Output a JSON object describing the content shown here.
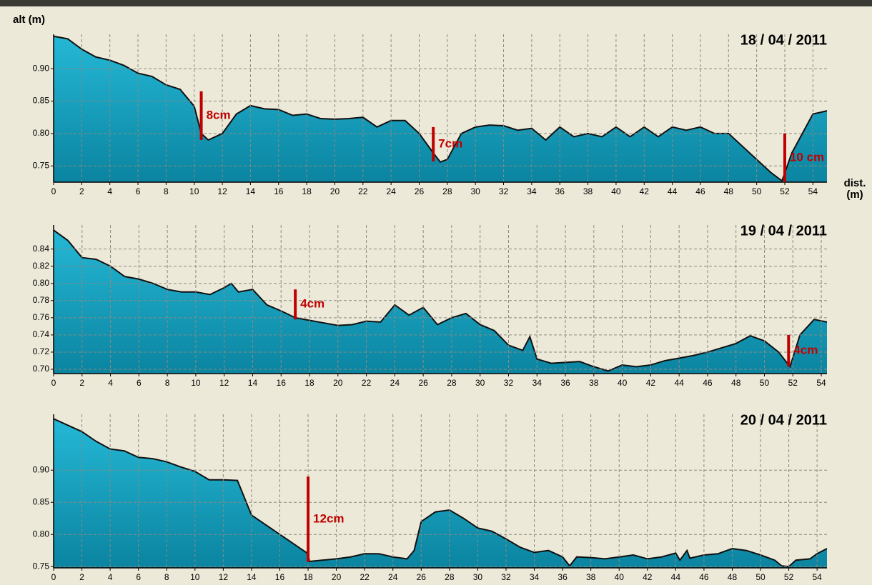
{
  "chart_data": [
    {
      "type": "area",
      "title": "18 / 04 / 2011",
      "ylabel": "alt (m)",
      "xlabel": [
        "dist.",
        "(m)"
      ],
      "xlim": [
        0,
        55
      ],
      "ylim": [
        0.725,
        0.953
      ],
      "xticks": [
        0,
        2,
        4,
        6,
        8,
        10,
        12,
        14,
        16,
        18,
        20,
        22,
        24,
        26,
        28,
        30,
        32,
        34,
        36,
        38,
        40,
        42,
        44,
        46,
        48,
        50,
        52,
        54
      ],
      "yticks": [
        {
          "value": 0.9,
          "label": "0.90"
        },
        0.85,
        {
          "value": 0.8,
          "label": "0.80"
        },
        0.75
      ],
      "grid": true,
      "series": [
        {
          "color": "#1ba5c2",
          "x": [
            0,
            1,
            2,
            3,
            4,
            5,
            6,
            7,
            8,
            9,
            10,
            10.5,
            11,
            12,
            13,
            14,
            15,
            16,
            17,
            18,
            19,
            20,
            21,
            22,
            23,
            24,
            25,
            26,
            27,
            27.5,
            28,
            29,
            30,
            31,
            32,
            33,
            34,
            35,
            36,
            37,
            38,
            39,
            40,
            41,
            42,
            43,
            44,
            45,
            46,
            47,
            48,
            49,
            50,
            51,
            51.8,
            52.5,
            53,
            54,
            55
          ],
          "values": [
            0.95,
            0.946,
            0.93,
            0.918,
            0.913,
            0.905,
            0.893,
            0.888,
            0.875,
            0.868,
            0.842,
            0.8,
            0.79,
            0.8,
            0.83,
            0.843,
            0.838,
            0.837,
            0.828,
            0.83,
            0.823,
            0.822,
            0.823,
            0.825,
            0.81,
            0.82,
            0.82,
            0.8,
            0.77,
            0.756,
            0.76,
            0.8,
            0.81,
            0.813,
            0.812,
            0.805,
            0.808,
            0.79,
            0.81,
            0.795,
            0.8,
            0.795,
            0.81,
            0.795,
            0.81,
            0.795,
            0.81,
            0.805,
            0.81,
            0.8,
            0.8,
            0.78,
            0.76,
            0.74,
            0.727,
            0.77,
            0.79,
            0.83,
            0.835
          ]
        }
      ],
      "annotations": [
        {
          "text": "8cm",
          "x": 10.5,
          "top": 0.865,
          "bottom": 0.79
        },
        {
          "text": "7cm",
          "x": 27,
          "top": 0.81,
          "bottom": 0.757
        },
        {
          "text": "10 cm",
          "x": 52,
          "top": 0.8,
          "bottom": 0.725
        }
      ]
    },
    {
      "type": "area",
      "title": "19 / 04 / 2011",
      "xlim": [
        0,
        54.4
      ],
      "ylim": [
        0.695,
        0.868
      ],
      "xticks": [
        0,
        2,
        4,
        6,
        8,
        10,
        12,
        14,
        16,
        18,
        20,
        22,
        24,
        26,
        28,
        30,
        32,
        34,
        36,
        38,
        40,
        42,
        44,
        46,
        48,
        50,
        52,
        54
      ],
      "yticks": [
        0.84,
        0.82,
        {
          "value": 0.8,
          "label": "0.80"
        },
        0.78,
        0.76,
        0.74,
        0.72,
        {
          "value": 0.7,
          "label": "0.70"
        }
      ],
      "grid": true,
      "series": [
        {
          "color": "#1ba5c2",
          "x": [
            0,
            1,
            2,
            3,
            4,
            5,
            6,
            7,
            8,
            9,
            10,
            11,
            12,
            12.5,
            13,
            14,
            15,
            16,
            17,
            18,
            19,
            20,
            21,
            22,
            23,
            24,
            25,
            26,
            27,
            28,
            29,
            30,
            31,
            32,
            33,
            33.5,
            34,
            35,
            36,
            37,
            38,
            39,
            40,
            41,
            42,
            43,
            44,
            45,
            46,
            47,
            48,
            49,
            50,
            51,
            51.8,
            52.5,
            53.5,
            54.4
          ],
          "values": [
            0.862,
            0.85,
            0.83,
            0.828,
            0.82,
            0.808,
            0.805,
            0.8,
            0.793,
            0.79,
            0.79,
            0.787,
            0.795,
            0.8,
            0.79,
            0.793,
            0.775,
            0.768,
            0.76,
            0.757,
            0.754,
            0.751,
            0.752,
            0.756,
            0.755,
            0.775,
            0.763,
            0.772,
            0.752,
            0.76,
            0.765,
            0.752,
            0.745,
            0.728,
            0.722,
            0.738,
            0.712,
            0.707,
            0.708,
            0.709,
            0.703,
            0.698,
            0.705,
            0.703,
            0.705,
            0.71,
            0.713,
            0.716,
            0.72,
            0.725,
            0.73,
            0.739,
            0.733,
            0.72,
            0.703,
            0.74,
            0.758,
            0.755
          ]
        }
      ],
      "annotations": [
        {
          "text": "4cm",
          "x": 17,
          "top": 0.793,
          "bottom": 0.758
        },
        {
          "text": "4cm",
          "x": 51.7,
          "top": 0.74,
          "bottom": 0.703
        }
      ]
    },
    {
      "type": "area",
      "title": "20 / 04 / 2011",
      "xlim": [
        0,
        54.7
      ],
      "ylim": [
        0.748,
        0.987
      ],
      "xticks": [
        0,
        2,
        4,
        6,
        8,
        10,
        12,
        14,
        16,
        18,
        20,
        22,
        24,
        26,
        28,
        30,
        32,
        34,
        36,
        38,
        40,
        42,
        44,
        46,
        48,
        50,
        52,
        54
      ],
      "yticks": [
        {
          "value": 0.9,
          "label": "0.90"
        },
        0.85,
        {
          "value": 0.8,
          "label": "0.80"
        },
        0.75
      ],
      "grid": true,
      "series": [
        {
          "color": "#1ba5c2",
          "x": [
            0,
            1,
            2,
            3,
            4,
            5,
            6,
            7,
            8,
            9,
            10,
            11,
            12,
            13,
            14,
            15,
            16,
            17,
            18,
            18.1,
            19,
            20,
            21,
            22,
            23,
            24,
            25,
            25.5,
            26,
            27,
            28,
            29,
            30,
            31,
            32,
            33,
            34,
            35,
            36,
            36.5,
            37,
            38,
            39,
            40,
            41,
            42,
            43,
            44,
            44.3,
            44.8,
            45,
            46,
            47,
            48,
            49,
            50,
            51,
            51.5,
            52,
            52.5,
            53.5,
            54,
            54.7
          ],
          "values": [
            0.98,
            0.97,
            0.96,
            0.945,
            0.933,
            0.93,
            0.92,
            0.918,
            0.913,
            0.905,
            0.898,
            0.885,
            0.885,
            0.884,
            0.83,
            0.815,
            0.8,
            0.785,
            0.77,
            0.758,
            0.76,
            0.762,
            0.765,
            0.77,
            0.77,
            0.765,
            0.762,
            0.775,
            0.82,
            0.835,
            0.838,
            0.825,
            0.81,
            0.805,
            0.793,
            0.78,
            0.772,
            0.775,
            0.765,
            0.751,
            0.765,
            0.764,
            0.762,
            0.765,
            0.768,
            0.762,
            0.765,
            0.771,
            0.76,
            0.775,
            0.763,
            0.768,
            0.77,
            0.778,
            0.775,
            0.768,
            0.76,
            0.751,
            0.75,
            0.76,
            0.762,
            0.77,
            0.778
          ]
        }
      ],
      "annotations": [
        {
          "text": "12cm",
          "x": 18,
          "top": 0.89,
          "bottom": 0.757
        }
      ]
    }
  ]
}
